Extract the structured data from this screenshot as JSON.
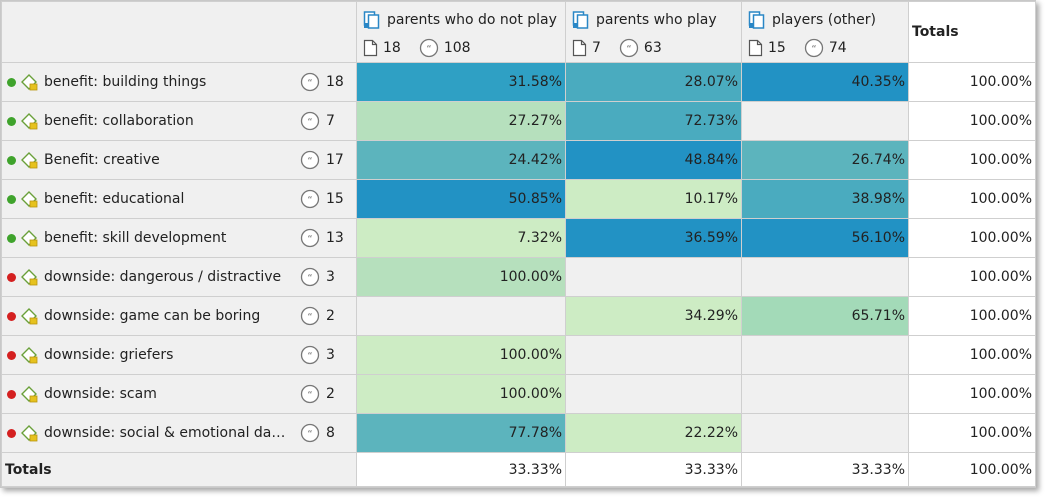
{
  "columns": [
    {
      "title": "parents who do not play",
      "docs": "18",
      "quotes": "108"
    },
    {
      "title": "parents who play",
      "docs": "7",
      "quotes": "63"
    },
    {
      "title": "players (other)",
      "docs": "15",
      "quotes": "74"
    }
  ],
  "totals_header": "Totals",
  "rows": [
    {
      "label": "benefit: building things",
      "count": "18",
      "status": "green",
      "values": [
        "31.58%",
        "28.07%",
        "40.35%"
      ],
      "colors": [
        "#2fa0c4",
        "#4aabbf",
        "#2292c4"
      ],
      "total": "100.00%"
    },
    {
      "label": "benefit: collaboration",
      "count": "7",
      "status": "green",
      "values": [
        "27.27%",
        "72.73%",
        ""
      ],
      "colors": [
        "#b6e0bd",
        "#4aabbf",
        ""
      ],
      "total": "100.00%"
    },
    {
      "label": "Benefit: creative",
      "count": "17",
      "status": "green",
      "values": [
        "24.42%",
        "48.84%",
        "26.74%"
      ],
      "colors": [
        "#5cb4bd",
        "#2292c4",
        "#5cb4bd"
      ],
      "total": "100.00%"
    },
    {
      "label": "benefit: educational",
      "count": "15",
      "status": "green",
      "values": [
        "50.85%",
        "10.17%",
        "38.98%"
      ],
      "colors": [
        "#2292c4",
        "#cdecc4",
        "#4aabbf"
      ],
      "total": "100.00%"
    },
    {
      "label": "benefit: skill development",
      "count": "13",
      "status": "green",
      "values": [
        "7.32%",
        "36.59%",
        "56.10%"
      ],
      "colors": [
        "#cdecc4",
        "#2292c4",
        "#2292c4"
      ],
      "total": "100.00%"
    },
    {
      "label": "downside: dangerous / distractive",
      "count": "3",
      "status": "red",
      "values": [
        "100.00%",
        "",
        ""
      ],
      "colors": [
        "#b6e0bd",
        "",
        ""
      ],
      "total": "100.00%"
    },
    {
      "label": "downside: game can be boring",
      "count": "2",
      "status": "red",
      "values": [
        "",
        "34.29%",
        "65.71%"
      ],
      "colors": [
        "",
        "#cdecc4",
        "#a3dab8"
      ],
      "total": "100.00%"
    },
    {
      "label": "downside: griefers",
      "count": "3",
      "status": "red",
      "values": [
        "100.00%",
        "",
        ""
      ],
      "colors": [
        "#cdecc4",
        "",
        ""
      ],
      "total": "100.00%"
    },
    {
      "label": "downside: scam",
      "count": "2",
      "status": "red",
      "values": [
        "100.00%",
        "",
        ""
      ],
      "colors": [
        "#cdecc4",
        "",
        ""
      ],
      "total": "100.00%"
    },
    {
      "label": "downside: social & emotional dan…",
      "count": "8",
      "status": "red",
      "values": [
        "77.78%",
        "22.22%",
        ""
      ],
      "colors": [
        "#5cb4bd",
        "#cdecc4",
        ""
      ],
      "total": "100.00%"
    }
  ],
  "totals_row": {
    "label": "Totals",
    "values": [
      "33.33%",
      "33.33%",
      "33.33%"
    ],
    "total": "100.00%"
  },
  "status_colors": {
    "green": "#3fa32c",
    "red": "#d42020"
  },
  "icons": {
    "column": "document-group-icon",
    "docs": "document-icon",
    "quotes": "quote-icon",
    "code": "code-tag-icon"
  }
}
